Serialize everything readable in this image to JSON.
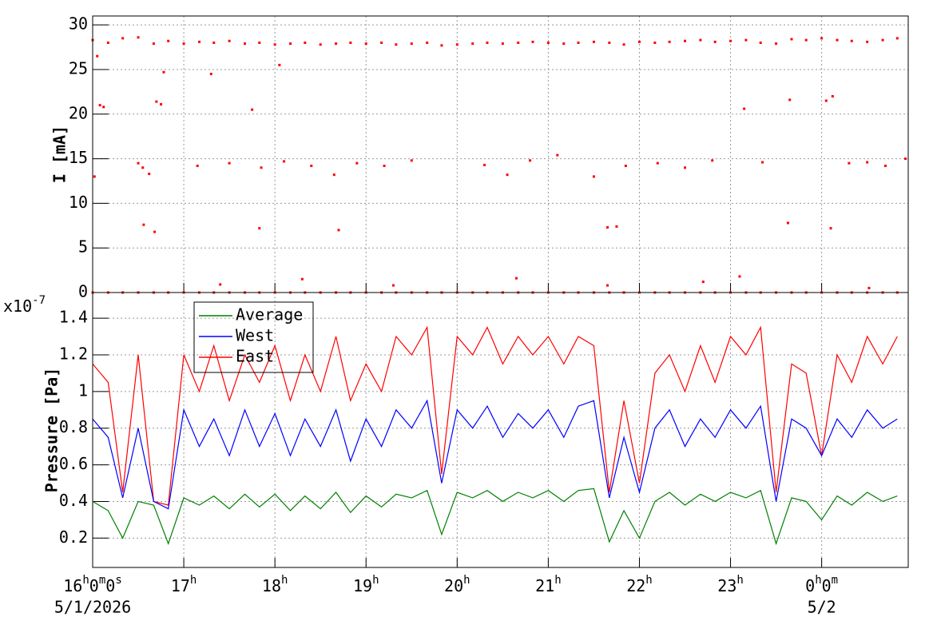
{
  "chart_data": [
    {
      "type": "scatter",
      "ylabel": "I [mA]",
      "ylim": [
        0,
        31
      ],
      "yticks": [
        0,
        5,
        10,
        15,
        20,
        25,
        30
      ],
      "xlim": [
        16,
        24.95
      ],
      "grid": true,
      "series": [
        {
          "color": "#ff0000",
          "x": [
            16.0,
            16.17,
            16.33,
            16.5,
            16.67,
            16.83,
            17.0,
            17.17,
            17.33,
            17.5,
            17.67,
            17.83,
            18.0,
            18.17,
            18.33,
            18.5,
            18.67,
            18.83,
            19.0,
            19.17,
            19.33,
            19.5,
            19.67,
            19.83,
            20.0,
            20.17,
            20.33,
            20.5,
            20.67,
            20.83,
            21.0,
            21.17,
            21.33,
            21.5,
            21.67,
            21.83,
            22.0,
            22.17,
            22.33,
            22.5,
            22.67,
            22.83,
            23.0,
            23.17,
            23.33,
            23.5,
            23.67,
            23.83,
            24.0,
            24.17,
            24.33,
            24.5,
            24.67,
            24.83,
            16.05,
            16.08,
            16.12,
            16.02,
            16.5,
            16.55,
            16.62,
            16.56,
            16.68,
            16.7,
            16.75,
            16.78,
            17.3,
            17.15,
            17.5,
            17.75,
            17.85,
            17.83,
            18.05,
            18.1,
            18.4,
            18.65,
            18.7,
            18.9,
            19.2,
            19.5,
            20.3,
            20.55,
            20.8,
            21.1,
            21.5,
            21.65,
            21.75,
            21.85,
            22.2,
            22.5,
            22.8,
            23.15,
            23.35,
            23.63,
            23.65,
            24.05,
            24.12,
            24.1,
            24.3,
            24.5,
            24.7,
            24.92,
            17.4,
            18.3,
            19.3,
            20.65,
            21.65,
            22.7,
            23.1,
            24.52
          ],
          "values": [
            28.3,
            28.0,
            28.5,
            28.6,
            27.9,
            28.2,
            27.9,
            28.1,
            28.0,
            28.2,
            27.9,
            28.0,
            27.8,
            27.9,
            28.0,
            27.8,
            27.9,
            28.0,
            27.9,
            28.0,
            27.8,
            27.9,
            28.0,
            27.7,
            27.8,
            27.9,
            28.0,
            27.9,
            28.0,
            28.1,
            28.0,
            27.9,
            28.0,
            28.1,
            28.0,
            27.8,
            28.1,
            28.0,
            28.1,
            28.2,
            28.3,
            28.1,
            28.2,
            28.3,
            28.0,
            27.9,
            28.4,
            28.3,
            28.5,
            28.3,
            28.2,
            28.1,
            28.3,
            28.5,
            26.5,
            21,
            20.8,
            13,
            14.5,
            14,
            13.3,
            7.6,
            6.8,
            21.4,
            21.1,
            24.7,
            24.5,
            14.2,
            14.5,
            20.5,
            14,
            7.2,
            25.5,
            14.7,
            14.2,
            13.2,
            7,
            14.5,
            14.2,
            14.8,
            14.3,
            13.2,
            14.8,
            15.4,
            13,
            7.3,
            7.4,
            14.2,
            14.5,
            14,
            14.8,
            20.6,
            14.6,
            7.8,
            21.6,
            21.5,
            22,
            7.2,
            14.5,
            14.6,
            14.2,
            15,
            0.9,
            1.5,
            0.8,
            1.6,
            0.8,
            1.2,
            1.8,
            0.5
          ]
        },
        {
          "color": "#ff0000",
          "x": [
            16.0,
            16.17,
            16.33,
            16.5,
            16.67,
            16.83,
            17.0,
            17.17,
            17.33,
            17.5,
            17.67,
            17.83,
            18.0,
            18.17,
            18.33,
            18.5,
            18.67,
            18.83,
            19.0,
            19.17,
            19.33,
            19.5,
            19.67,
            19.83,
            20.0,
            20.17,
            20.33,
            20.5,
            20.67,
            20.83,
            21.0,
            21.17,
            21.33,
            21.5,
            21.67,
            21.83,
            22.0,
            22.17,
            22.33,
            22.5,
            22.67,
            22.83,
            23.0,
            23.17,
            23.33,
            23.5,
            23.67,
            23.83,
            24.0,
            24.17,
            24.33,
            24.5,
            24.67,
            24.83
          ],
          "values": [
            0,
            0,
            0,
            0,
            0,
            0,
            0,
            0,
            0,
            0,
            0,
            0,
            0,
            0,
            0,
            0,
            0,
            0,
            0,
            0,
            0,
            0,
            0,
            0,
            0,
            0,
            0,
            0,
            0,
            0,
            0,
            0,
            0,
            0,
            0,
            0,
            0,
            0,
            0,
            0,
            0,
            0,
            0,
            0,
            0,
            0,
            0,
            0,
            0,
            0,
            0,
            0,
            0,
            0
          ]
        }
      ]
    },
    {
      "type": "line",
      "ylabel": "Pressure [Pa]",
      "y_exponent": "x10-7",
      "ylim": [
        0.04,
        1.54
      ],
      "yticks": [
        0.2,
        0.4,
        0.6,
        0.8,
        1,
        1.2,
        1.4
      ],
      "xlim": [
        16,
        24.95
      ],
      "xticks": [
        {
          "value": 16,
          "label": "16h0m0s"
        },
        {
          "value": 17,
          "label": "17h"
        },
        {
          "value": 18,
          "label": "18h"
        },
        {
          "value": 19,
          "label": "19h"
        },
        {
          "value": 20,
          "label": "20h"
        },
        {
          "value": 21,
          "label": "21h"
        },
        {
          "value": 22,
          "label": "22h"
        },
        {
          "value": 23,
          "label": "23h"
        },
        {
          "value": 24,
          "label": "0h0m"
        }
      ],
      "date_labels": [
        {
          "value": 16,
          "label": "5/1/2026"
        },
        {
          "value": 24,
          "label": "5/2"
        }
      ],
      "grid": true,
      "legend": "top-left",
      "x": [
        16.0,
        16.17,
        16.33,
        16.5,
        16.67,
        16.83,
        17.0,
        17.17,
        17.33,
        17.5,
        17.67,
        17.83,
        18.0,
        18.17,
        18.33,
        18.5,
        18.67,
        18.83,
        19.0,
        19.17,
        19.33,
        19.5,
        19.67,
        19.83,
        20.0,
        20.17,
        20.33,
        20.5,
        20.67,
        20.83,
        21.0,
        21.17,
        21.33,
        21.5,
        21.67,
        21.83,
        22.0,
        22.17,
        22.33,
        22.5,
        22.67,
        22.83,
        23.0,
        23.17,
        23.33,
        23.5,
        23.67,
        23.83,
        24.0,
        24.17,
        24.33,
        24.5,
        24.67,
        24.83
      ],
      "series": [
        {
          "name": "Average",
          "color": "#008000",
          "values": [
            0.4,
            0.35,
            0.2,
            0.4,
            0.38,
            0.17,
            0.42,
            0.38,
            0.43,
            0.36,
            0.44,
            0.37,
            0.44,
            0.35,
            0.43,
            0.36,
            0.45,
            0.34,
            0.43,
            0.37,
            0.44,
            0.42,
            0.46,
            0.22,
            0.45,
            0.42,
            0.46,
            0.4,
            0.45,
            0.42,
            0.46,
            0.4,
            0.46,
            0.47,
            0.18,
            0.35,
            0.2,
            0.4,
            0.45,
            0.38,
            0.44,
            0.4,
            0.45,
            0.42,
            0.46,
            0.17,
            0.42,
            0.4,
            0.3,
            0.43,
            0.38,
            0.45,
            0.4,
            0.43
          ]
        },
        {
          "name": "West",
          "color": "#0000ff",
          "values": [
            0.85,
            0.75,
            0.42,
            0.8,
            0.4,
            0.36,
            0.9,
            0.7,
            0.85,
            0.65,
            0.9,
            0.7,
            0.88,
            0.65,
            0.85,
            0.7,
            0.9,
            0.62,
            0.85,
            0.7,
            0.9,
            0.8,
            0.95,
            0.5,
            0.9,
            0.8,
            0.92,
            0.75,
            0.88,
            0.8,
            0.9,
            0.75,
            0.92,
            0.95,
            0.42,
            0.75,
            0.45,
            0.8,
            0.9,
            0.7,
            0.85,
            0.75,
            0.9,
            0.8,
            0.92,
            0.4,
            0.85,
            0.8,
            0.65,
            0.85,
            0.75,
            0.9,
            0.8,
            0.85
          ]
        },
        {
          "name": "East",
          "color": "#ff0000",
          "values": [
            1.15,
            1.05,
            0.45,
            1.2,
            0.4,
            0.38,
            1.2,
            1.0,
            1.25,
            0.95,
            1.2,
            1.05,
            1.25,
            0.95,
            1.2,
            1.0,
            1.3,
            0.95,
            1.15,
            1.0,
            1.3,
            1.2,
            1.35,
            0.55,
            1.3,
            1.2,
            1.35,
            1.15,
            1.3,
            1.2,
            1.3,
            1.15,
            1.3,
            1.25,
            0.45,
            0.95,
            0.5,
            1.1,
            1.2,
            1.0,
            1.25,
            1.05,
            1.3,
            1.2,
            1.35,
            0.45,
            1.15,
            1.1,
            0.65,
            1.2,
            1.05,
            1.3,
            1.15,
            1.3
          ]
        }
      ]
    }
  ]
}
